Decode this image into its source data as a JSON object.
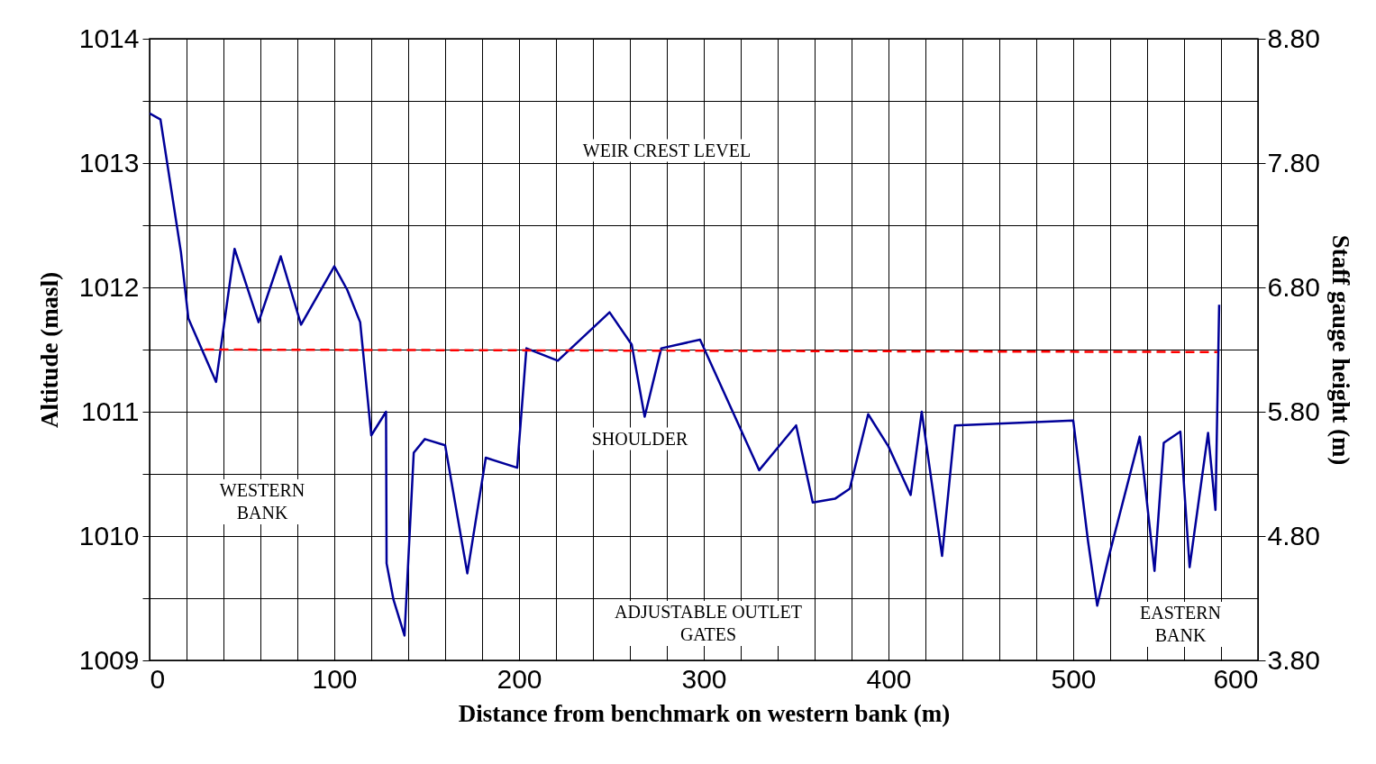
{
  "chart_data": {
    "type": "line",
    "xlabel": "Distance from benchmark on western bank (m)",
    "ylabel": "Altitude (masl)",
    "y2label": "Staff gauge height (m)",
    "xlim": [
      0,
      600
    ],
    "xticks": [
      0,
      {
        "value": 20,
        "label": null
      },
      {
        "value": 40,
        "label": null
      },
      {
        "value": 60,
        "label": null
      },
      {
        "value": 80,
        "label": null
      },
      100,
      {
        "value": 120,
        "label": null
      },
      {
        "value": 140,
        "label": null
      },
      {
        "value": 160,
        "label": null
      },
      {
        "value": 180,
        "label": null
      },
      200,
      {
        "value": 220,
        "label": null
      },
      {
        "value": 240,
        "label": null
      },
      {
        "value": 260,
        "label": null
      },
      {
        "value": 280,
        "label": null
      },
      300,
      {
        "value": 320,
        "label": null
      },
      {
        "value": 340,
        "label": null
      },
      {
        "value": 360,
        "label": null
      },
      {
        "value": 380,
        "label": null
      },
      400,
      {
        "value": 420,
        "label": null
      },
      {
        "value": 440,
        "label": null
      },
      {
        "value": 460,
        "label": null
      },
      {
        "value": 480,
        "label": null
      },
      500,
      {
        "value": 520,
        "label": null
      },
      {
        "value": 540,
        "label": null
      },
      {
        "value": 560,
        "label": null
      },
      {
        "value": 580,
        "label": null
      },
      600
    ],
    "ylim": [
      1009,
      1014
    ],
    "yticks": [
      1009,
      {
        "value": 1009.5,
        "label": null
      },
      1010,
      {
        "value": 1010.5,
        "label": null
      },
      1011,
      {
        "value": 1011.5,
        "label": null
      },
      1012,
      {
        "value": 1012.5,
        "label": null
      },
      1013,
      {
        "value": 1013.5,
        "label": null
      },
      1014
    ],
    "y2lim": [
      3.8,
      8.8
    ],
    "y2ticks": [
      {
        "value": 3.8,
        "label": "3.80"
      },
      {
        "value": 4.8,
        "label": "4.80"
      },
      {
        "value": 5.8,
        "label": "5.80"
      },
      {
        "value": 6.8,
        "label": "6.80"
      },
      {
        "value": 7.8,
        "label": "7.80"
      },
      {
        "value": 8.8,
        "label": "8.80"
      }
    ],
    "grid": true,
    "marker": "none",
    "series": [
      {
        "color": "#000099",
        "line_style": "solid",
        "x": [
          0,
          5.9,
          17,
          21,
          36,
          46,
          59,
          71,
          82,
          100,
          107,
          114,
          120,
          128,
          128.3,
          132,
          138,
          143,
          149,
          160,
          172,
          182,
          199,
          204,
          221,
          249,
          261,
          268,
          277,
          298,
          330,
          350,
          359,
          371,
          379,
          389,
          400,
          412,
          418,
          429,
          436,
          500,
          508,
          513,
          519,
          536,
          544,
          549,
          558,
          563,
          573,
          577,
          579
        ],
        "values": [
          1013.4,
          1013.35,
          1012.28,
          1011.75,
          1011.24,
          1012.31,
          1011.72,
          1012.25,
          1011.7,
          1012.17,
          1011.98,
          1011.72,
          1010.81,
          1011.0,
          1009.78,
          1009.49,
          1009.2,
          1010.67,
          1010.78,
          1010.73,
          1009.7,
          1010.63,
          1010.55,
          1011.51,
          1011.41,
          1011.8,
          1011.54,
          1010.96,
          1011.51,
          1011.58,
          1010.53,
          1010.89,
          1010.27,
          1010.3,
          1010.38,
          1010.98,
          1010.72,
          1010.33,
          1011.0,
          1009.84,
          1010.89,
          1010.93,
          1009.96,
          1009.44,
          1009.82,
          1010.8,
          1009.72,
          1010.75,
          1010.84,
          1009.75,
          1010.83,
          1010.21,
          1011.86
        ]
      },
      {
        "color": "#ff0000",
        "line_style": "dashed",
        "x": [
          30,
          578
        ],
        "values": [
          1011.5,
          1011.48
        ]
      }
    ],
    "annotations": [
      "WEIR CREST LEVEL",
      "SHOULDER",
      "WESTERN\nBANK",
      "ADJUSTABLE OUTLET\nGATES",
      "EASTERN\nBANK"
    ]
  }
}
